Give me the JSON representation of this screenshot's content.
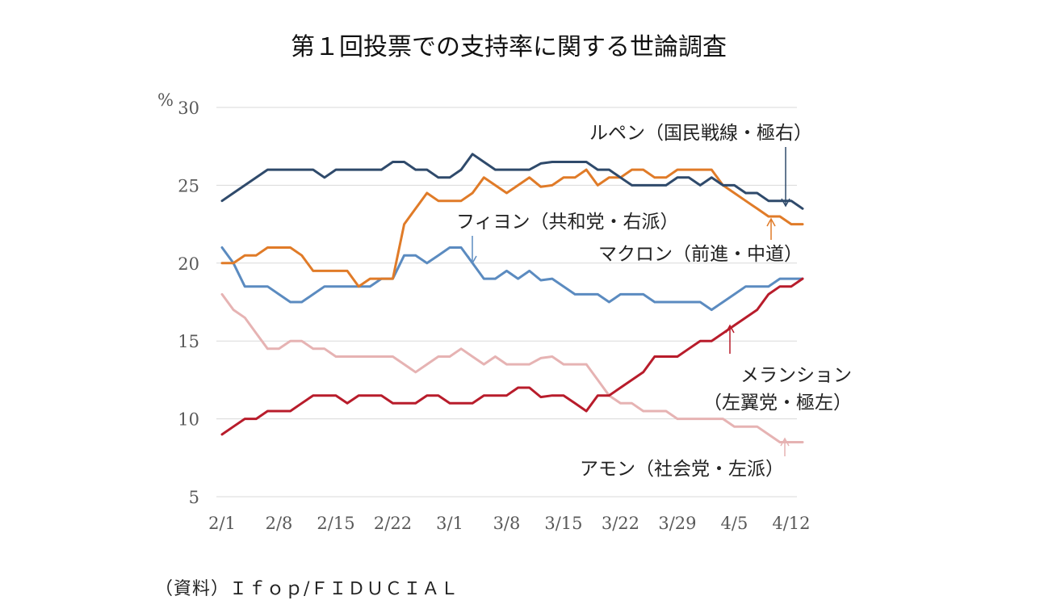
{
  "chart_data": {
    "type": "line",
    "title": "第１回投票での支持率に関する世論調査",
    "ylabel": "%",
    "ylim": [
      5,
      30
    ],
    "yticks": [
      "30",
      "25",
      "20",
      "15",
      "10",
      "5"
    ],
    "ytick_values": [
      30,
      25,
      20,
      15,
      10,
      5
    ],
    "xticks": [
      "2/1",
      "2/8",
      "2/15",
      "2/22",
      "3/1",
      "3/8",
      "3/15",
      "3/22",
      "3/29",
      "4/5",
      "4/12"
    ],
    "xtick_values": [
      0,
      5,
      10,
      15,
      20,
      25,
      30,
      35,
      40,
      45,
      50
    ],
    "xlim": [
      0,
      50.5
    ],
    "grid": true,
    "source": "（資料）Ｉｆｏｐ/ＦＩＤＵＣＩＡＬ",
    "series": [
      {
        "name": "ルペン（国民戦線・極右）",
        "color": "#2f4a6b",
        "values": [
          24,
          24.5,
          25,
          25.5,
          26,
          26,
          26,
          26,
          26,
          25.5,
          26,
          26,
          26,
          26,
          26,
          26.5,
          26.5,
          26,
          26,
          25.5,
          25.5,
          26,
          27,
          26.5,
          26,
          26,
          26,
          26,
          26.4,
          26.5,
          26.5,
          26.5,
          26.5,
          26,
          26,
          25.5,
          25,
          25,
          25,
          25,
          25.5,
          25.5,
          25,
          25.5,
          25,
          25,
          24.5,
          24.5,
          24,
          24,
          24,
          23.5
        ]
      },
      {
        "name": "マクロン（前進・中道）",
        "color": "#e07b28",
        "values": [
          20,
          20,
          20.5,
          20.5,
          21,
          21,
          21,
          20.5,
          19.5,
          19.5,
          19.5,
          19.5,
          18.5,
          19,
          19,
          19,
          22.5,
          23.5,
          24.5,
          24,
          24,
          24,
          24.5,
          25.5,
          25,
          24.5,
          25,
          25.5,
          24.9,
          25,
          25.5,
          25.5,
          26,
          25,
          25.5,
          25.5,
          26,
          26,
          25.5,
          25.5,
          26,
          26,
          26,
          26,
          25,
          24.5,
          24,
          23.5,
          23,
          23,
          22.5,
          22.5
        ]
      },
      {
        "name": "フィヨン（共和党・右派）",
        "color": "#5b8bc0",
        "values": [
          21,
          20,
          18.5,
          18.5,
          18.5,
          18,
          17.5,
          17.5,
          18,
          18.5,
          18.5,
          18.5,
          18.5,
          18.5,
          19,
          19,
          20.5,
          20.5,
          20,
          20.5,
          21,
          21,
          20,
          19,
          19,
          19.5,
          19,
          19.5,
          18.9,
          19,
          18.5,
          18,
          18,
          18,
          17.5,
          18,
          18,
          18,
          17.5,
          17.5,
          17.5,
          17.5,
          17.5,
          17,
          17.5,
          18,
          18.5,
          18.5,
          18.5,
          19,
          19,
          19
        ]
      },
      {
        "name": "メランション（左翼党・極左）",
        "color": "#b81c2b",
        "values": [
          9,
          9.5,
          10,
          10,
          10.5,
          10.5,
          10.5,
          11,
          11.5,
          11.5,
          11.5,
          11,
          11.5,
          11.5,
          11.5,
          11,
          11,
          11,
          11.5,
          11.5,
          11,
          11,
          11,
          11.5,
          11.5,
          11.5,
          12,
          12,
          11.4,
          11.5,
          11.5,
          11,
          10.5,
          11.5,
          11.5,
          12,
          12.5,
          13,
          14,
          14,
          14,
          14.5,
          15,
          15,
          15.5,
          16,
          16.5,
          17,
          18,
          18.5,
          18.5,
          19
        ]
      },
      {
        "name": "アモン（社会党・左派）",
        "color": "#e6b3b3",
        "values": [
          18,
          17,
          16.5,
          15.5,
          14.5,
          14.5,
          15,
          15,
          14.5,
          14.5,
          14,
          14,
          14,
          14,
          14,
          14,
          13.5,
          13,
          13.5,
          14,
          14,
          14.5,
          14,
          13.5,
          14,
          13.5,
          13.5,
          13.5,
          13.9,
          14,
          13.5,
          13.5,
          13.5,
          12.5,
          11.5,
          11,
          11,
          10.5,
          10.5,
          10.5,
          10,
          10,
          10,
          10,
          10,
          9.5,
          9.5,
          9.5,
          9,
          8.5,
          8.5,
          8.5
        ]
      }
    ],
    "annotations": [
      {
        "lines": [
          "ルペン（国民戦線・極右）"
        ],
        "series": 0
      },
      {
        "lines": [
          "フィヨン（共和党・右派）"
        ],
        "series": 2
      },
      {
        "lines": [
          "マクロン（前進・中道）"
        ],
        "series": 1
      },
      {
        "lines": [
          "メランション",
          "（左翼党・極左）"
        ],
        "series": 3
      },
      {
        "lines": [
          "アモン（社会党・左派）"
        ],
        "series": 4
      }
    ]
  }
}
